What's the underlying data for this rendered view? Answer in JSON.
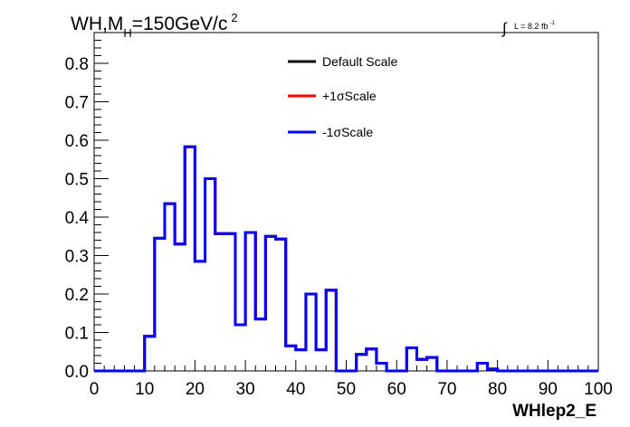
{
  "chart_data": {
    "type": "line",
    "title": "WH,M",
    "title_sub": "H",
    "title_rest": "=150GeV/c",
    "title_sup": "2",
    "lumi": {
      "integral": "∫",
      "text": "L = 8.2 fb",
      "sup": "-1"
    },
    "xlabel": "WHlep2_E",
    "ylabel": "",
    "xlim": [
      0,
      100
    ],
    "ylim": [
      0,
      0.88
    ],
    "xticks": [
      "0",
      "10",
      "20",
      "30",
      "40",
      "50",
      "60",
      "70",
      "80",
      "90",
      "100"
    ],
    "yticks": [
      "0.0",
      "0.1",
      "0.2",
      "0.3",
      "0.4",
      "0.5",
      "0.6",
      "0.7",
      "0.8"
    ],
    "grid": false,
    "legend_position": "top-center",
    "bin_edges": [
      0,
      2,
      4,
      6,
      8,
      10,
      12,
      14,
      16,
      18,
      20,
      22,
      24,
      26,
      28,
      30,
      32,
      34,
      36,
      38,
      40,
      42,
      44,
      46,
      48,
      50,
      52,
      54,
      56,
      58,
      60,
      62,
      64,
      66,
      68,
      70,
      72,
      74,
      76,
      78,
      80,
      82,
      84,
      86,
      88,
      90,
      92,
      94,
      96,
      98,
      100
    ],
    "series": [
      {
        "name": "Default Scale",
        "color": "#000000",
        "values": [
          0,
          0,
          0,
          0,
          0,
          0.09,
          0.345,
          0.435,
          0.33,
          0.583,
          0.285,
          0.5,
          0.357,
          0.357,
          0.12,
          0.36,
          0.135,
          0.35,
          0.343,
          0.065,
          0.055,
          0.2,
          0.055,
          0.21,
          0,
          0,
          0.043,
          0.057,
          0.02,
          0,
          0,
          0.06,
          0.03,
          0.035,
          0,
          0,
          0,
          0,
          0.02,
          0.005,
          0,
          0,
          0,
          0,
          0,
          0,
          0,
          0,
          0,
          0
        ]
      },
      {
        "name": "+1σScale",
        "color": "#ff0000",
        "values": [
          0,
          0,
          0,
          0,
          0,
          0.09,
          0.345,
          0.435,
          0.33,
          0.583,
          0.285,
          0.5,
          0.357,
          0.357,
          0.12,
          0.36,
          0.135,
          0.35,
          0.343,
          0.065,
          0.055,
          0.2,
          0.055,
          0.21,
          0,
          0,
          0.043,
          0.057,
          0.02,
          0,
          0,
          0.06,
          0.03,
          0.035,
          0,
          0,
          0,
          0,
          0.02,
          0.005,
          0,
          0,
          0,
          0,
          0,
          0,
          0,
          0,
          0,
          0
        ]
      },
      {
        "name": "-1σScale",
        "color": "#0000ff",
        "values": [
          0,
          0,
          0,
          0,
          0,
          0.09,
          0.345,
          0.435,
          0.33,
          0.583,
          0.285,
          0.5,
          0.357,
          0.357,
          0.12,
          0.36,
          0.135,
          0.35,
          0.343,
          0.065,
          0.055,
          0.2,
          0.055,
          0.21,
          0,
          0,
          0.043,
          0.057,
          0.02,
          0,
          0,
          0.06,
          0.03,
          0.035,
          0,
          0,
          0,
          0,
          0.02,
          0.005,
          0,
          0,
          0,
          0,
          0,
          0,
          0,
          0,
          0,
          0
        ]
      }
    ]
  }
}
